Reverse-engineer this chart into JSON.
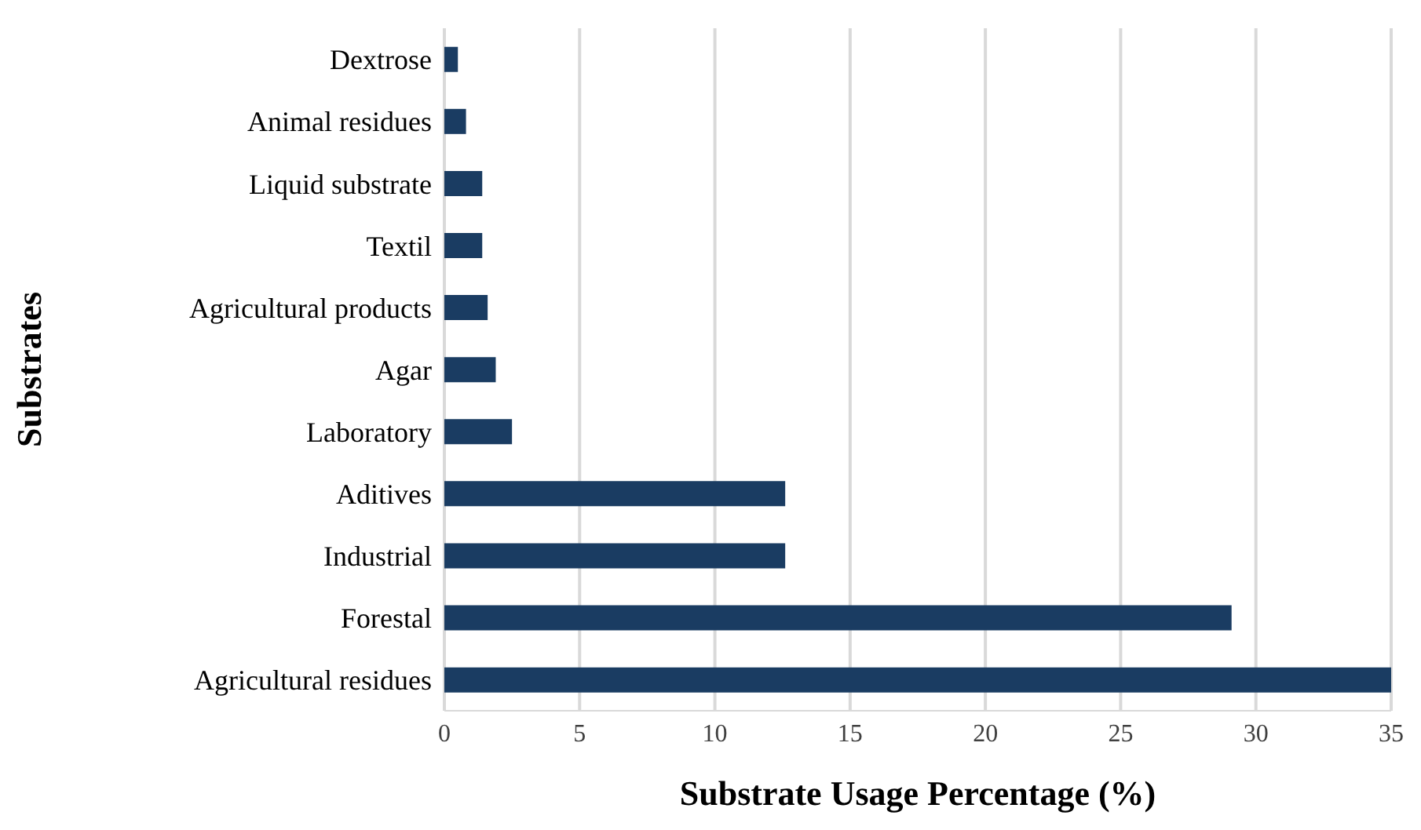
{
  "chart_data": {
    "type": "bar",
    "orientation": "horizontal",
    "xlabel": "Substrate Usage Percentage (%)",
    "ylabel": "Substrates",
    "categories": [
      "Dextrose",
      "Animal residues",
      "Liquid substrate",
      "Textil",
      "Agricultural products",
      "Agar",
      "Laboratory",
      "Aditives",
      "Industrial",
      "Forestal",
      "Agricultural residues"
    ],
    "values": [
      0.5,
      0.8,
      1.4,
      1.4,
      1.6,
      1.9,
      2.5,
      12.6,
      12.6,
      29.1,
      35
    ],
    "color": "#1a3c62",
    "xlim": [
      0,
      35
    ],
    "xticks": [
      0,
      5,
      10,
      15,
      20,
      25,
      30,
      35
    ],
    "grid": "x"
  }
}
